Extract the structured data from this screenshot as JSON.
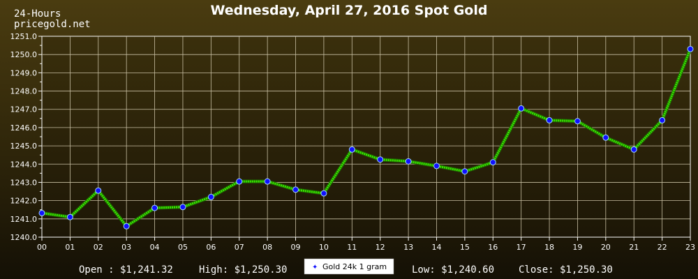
{
  "brand": {
    "line1": "24-Hours",
    "line2": "pricegold.net"
  },
  "stats": {
    "open": "Open : $1,241.32",
    "high": "High: $1,250.30",
    "low": "Low: $1,240.60",
    "close": "Close: $1,250.30"
  },
  "colors": {
    "line": "#39e600",
    "point_fill": "#1010ff",
    "point_stroke": "#9fd8ff",
    "grid": "#c9c0a4",
    "plot_bg_top": "#3a2f0c",
    "plot_bg_bottom": "#1c1606"
  },
  "chart_data": {
    "type": "line",
    "title": "Wednesday, April 27, 2016 Spot Gold",
    "xlabel": "",
    "ylabel": "",
    "categories": [
      "00",
      "01",
      "02",
      "03",
      "04",
      "05",
      "06",
      "07",
      "08",
      "09",
      "10",
      "11",
      "12",
      "13",
      "14",
      "15",
      "16",
      "17",
      "18",
      "19",
      "20",
      "21",
      "22",
      "23"
    ],
    "yticks": [
      "1240.0",
      "1241.0",
      "1242.0",
      "1243.0",
      "1244.0",
      "1245.0",
      "1246.0",
      "1247.0",
      "1248.0",
      "1249.0",
      "1250.0",
      "1251.0"
    ],
    "ylim": [
      1240.0,
      1251.0
    ],
    "grid": true,
    "legend_position": "bottom-center",
    "series": [
      {
        "name": "Gold 24k 1 gram",
        "values": [
          1241.32,
          1241.1,
          1242.55,
          1240.6,
          1241.6,
          1241.65,
          1242.2,
          1243.05,
          1243.05,
          1242.6,
          1242.4,
          1244.8,
          1244.25,
          1244.15,
          1243.9,
          1243.6,
          1244.1,
          1247.05,
          1246.4,
          1246.35,
          1245.45,
          1244.8,
          1246.4,
          1250.3
        ]
      }
    ]
  }
}
